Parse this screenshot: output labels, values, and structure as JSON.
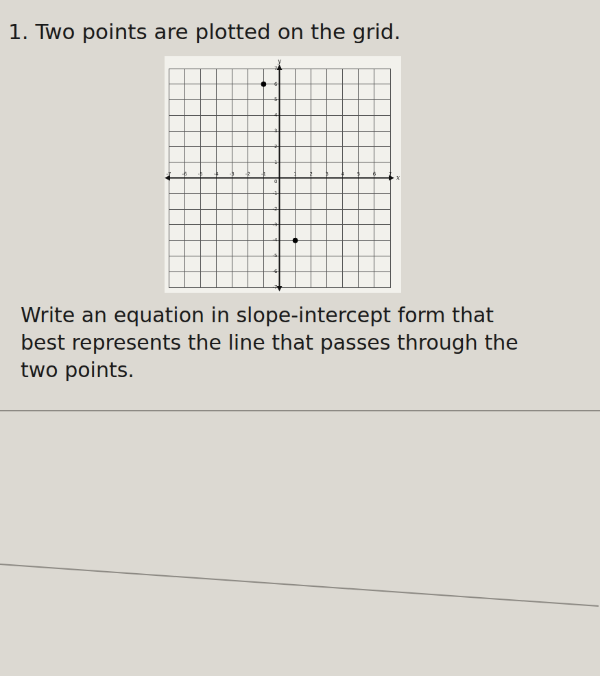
{
  "question": {
    "number": "1.",
    "intro": "Two points are plotted on the grid.",
    "prompt": "Write an equation in slope-intercept form that best represents the line that passes through the two points."
  },
  "chart_data": {
    "type": "scatter",
    "x": [
      -1,
      1
    ],
    "values": [
      6,
      -4
    ],
    "color": "#000000",
    "xlim": [
      -7,
      7
    ],
    "ylim": [
      -7,
      7
    ],
    "xticks": [
      -7,
      -6,
      -5,
      -4,
      -3,
      -2,
      -1,
      0,
      1,
      2,
      3,
      4,
      5,
      6,
      7
    ],
    "yticks": [
      -7,
      -6,
      -5,
      -4,
      -3,
      -2,
      -1,
      0,
      1,
      2,
      3,
      4,
      5,
      6,
      7
    ],
    "grid": true,
    "xlabel": "x",
    "ylabel": "y"
  }
}
